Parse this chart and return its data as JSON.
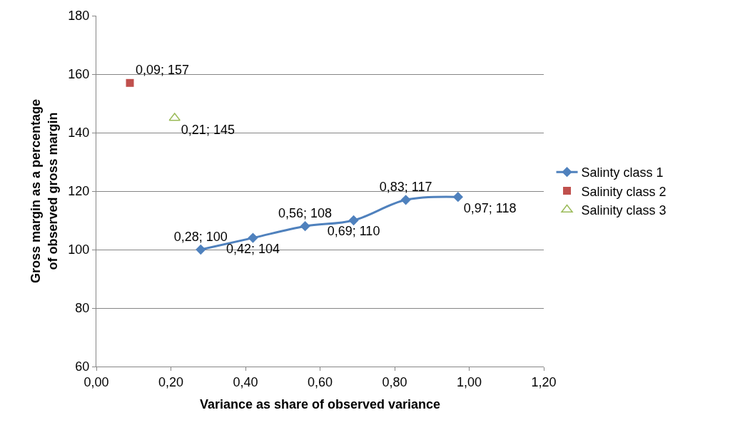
{
  "chart_data": {
    "type": "line",
    "xlabel": "Variance as share of observed variance",
    "ylabel": "Gross margin as a percentage of observed gross margin",
    "xlim": [
      0,
      1.2
    ],
    "xticks": [
      {
        "value": 0,
        "label": "0,00"
      },
      {
        "value": 0.2,
        "label": "0,20"
      },
      {
        "value": 0.4,
        "label": "0,40"
      },
      {
        "value": 0.6,
        "label": "0,60"
      },
      {
        "value": 0.8,
        "label": "0,80"
      },
      {
        "value": 1.0,
        "label": "1,00"
      },
      {
        "value": 1.2,
        "label": "1,20"
      }
    ],
    "ylim": [
      60,
      180
    ],
    "yticks": [
      60,
      80,
      100,
      120,
      140,
      160,
      180
    ],
    "grid": "y",
    "legend": "right",
    "series": [
      {
        "name": "Salinty class 1",
        "marker": "diamond",
        "color": "#4f81bd",
        "x": [
          0.28,
          0.42,
          0.56,
          0.69,
          0.83,
          0.97
        ],
        "values": [
          100,
          104,
          108,
          110,
          117,
          118
        ],
        "value_labels": [
          "0,28; 100",
          "0,42; 104",
          "0,56; 108",
          "0,69; 110",
          "0,83; 117",
          "0,97; 118"
        ]
      },
      {
        "name": "Salinity class 2",
        "type": "scatter",
        "marker": "square",
        "color": "#c0504d",
        "x": [
          0.09
        ],
        "values": [
          157
        ],
        "value_labels": [
          "0,09; 157"
        ]
      },
      {
        "name": "Salinity class 3",
        "type": "scatter",
        "marker": "triangle",
        "color": "#9bbb59",
        "x": [
          0.21
        ],
        "values": [
          145
        ],
        "value_labels": [
          "0,21; 145"
        ]
      }
    ]
  }
}
